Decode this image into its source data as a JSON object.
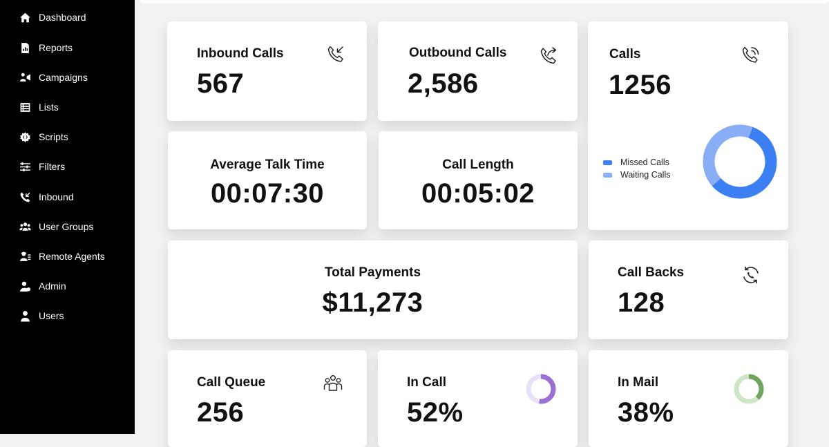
{
  "sidebar": {
    "items": [
      {
        "label": "Dashboard",
        "icon": "home-icon"
      },
      {
        "label": "Reports",
        "icon": "report-icon"
      },
      {
        "label": "Campaigns",
        "icon": "campaign-icon"
      },
      {
        "label": "Lists",
        "icon": "list-icon"
      },
      {
        "label": "Scripts",
        "icon": "script-icon"
      },
      {
        "label": "Filters",
        "icon": "filter-icon"
      },
      {
        "label": "Inbound",
        "icon": "inbound-phone-icon"
      },
      {
        "label": "User Groups",
        "icon": "user-groups-icon"
      },
      {
        "label": "Remote Agents",
        "icon": "remote-agents-icon"
      },
      {
        "label": "Admin",
        "icon": "admin-icon"
      },
      {
        "label": "Users",
        "icon": "user-icon"
      }
    ]
  },
  "cards": {
    "inbound": {
      "title": "Inbound Calls",
      "value": "567",
      "icon": "inbound-call-icon"
    },
    "outbound": {
      "title": "Outbound Calls",
      "value": "2,586",
      "icon": "outbound-call-icon"
    },
    "calls": {
      "title": "Calls",
      "value": "1256",
      "icon": "phone-ringing-icon",
      "legend": [
        {
          "label": "Missed Calls",
          "color": "#3b7ff2"
        },
        {
          "label": "Waiting Calls",
          "color": "#8aaef6"
        }
      ]
    },
    "avg_talk": {
      "title": "Average Talk Time",
      "value": "00:07:30"
    },
    "call_length": {
      "title": "Call Length",
      "value": "00:05:02"
    },
    "total_payments": {
      "title": "Total Payments",
      "value": "$11,273"
    },
    "call_backs": {
      "title": "Call Backs",
      "value": "128",
      "icon": "callback-icon"
    },
    "call_queue": {
      "title": "Call Queue",
      "value": "256",
      "icon": "group-icon"
    },
    "in_call": {
      "title": "In Call",
      "value": "52%",
      "icon": "progress-ring-icon",
      "fraction": 0.52,
      "color": "#9b6fd3",
      "track": "#eadff8"
    },
    "in_mail": {
      "title": "In Mail",
      "value": "38%",
      "icon": "progress-ring-icon",
      "fraction": 0.38,
      "color": "#6fa65b",
      "track": "#cfe6c6"
    }
  },
  "chart_data": {
    "type": "pie",
    "categories": [
      "Missed Calls",
      "Waiting Calls"
    ],
    "values": [
      58,
      42
    ],
    "colors": [
      "#3b7ff2",
      "#8aaef6"
    ]
  }
}
